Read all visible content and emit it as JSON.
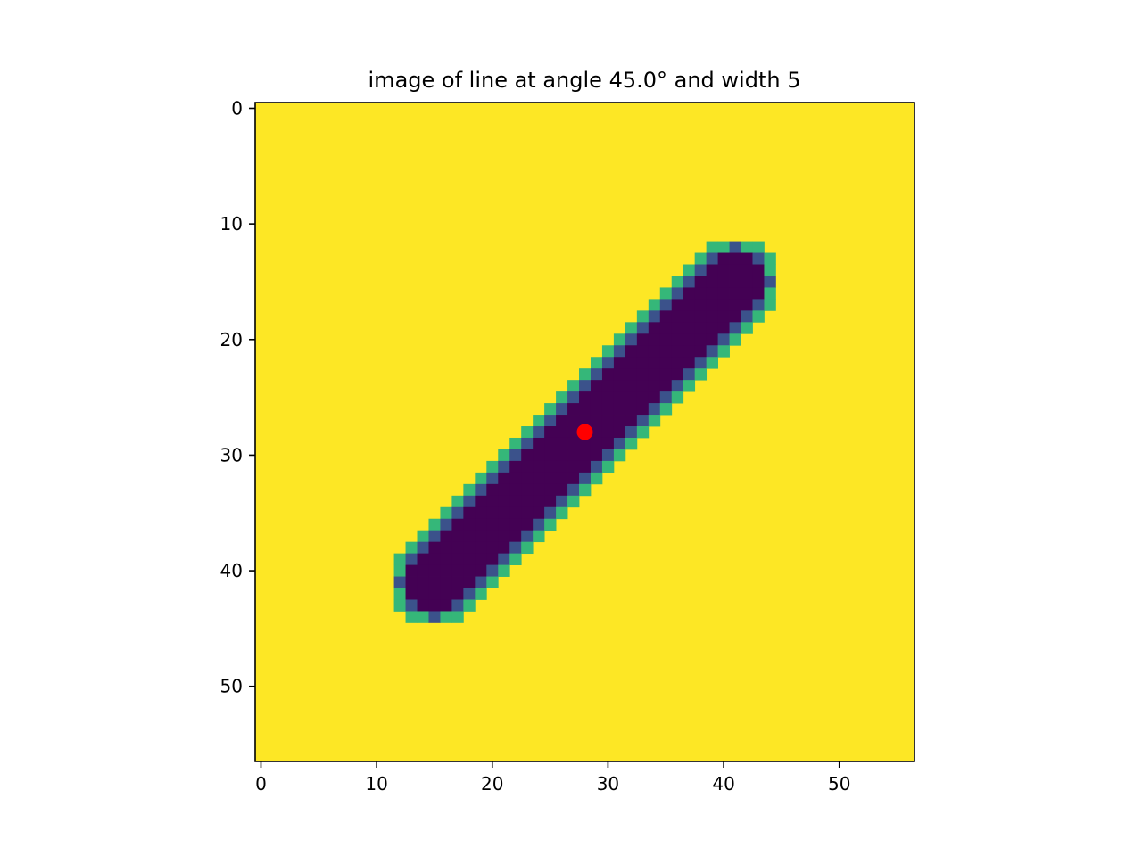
{
  "chart_data": {
    "type": "heatmap",
    "title": "image of line at angle 45.0° and width 5",
    "xlabel": "",
    "ylabel": "",
    "image_size": [
      57,
      57
    ],
    "xlim": [
      -0.5,
      56.5
    ],
    "ylim": [
      56.5,
      -0.5
    ],
    "x_ticks": [
      0,
      10,
      20,
      30,
      40,
      50
    ],
    "y_ticks": [
      0,
      10,
      20,
      30,
      40,
      50
    ],
    "x_tick_labels": [
      "0",
      "10",
      "20",
      "30",
      "40",
      "50"
    ],
    "y_tick_labels": [
      "0",
      "10",
      "20",
      "30",
      "40",
      "50"
    ],
    "colormap": "viridis",
    "colors": {
      "background": "#fde725",
      "core": "#440154",
      "edge_inner": "#3b528b",
      "edge_outer": "#35b779",
      "marker": "#ff0000"
    },
    "line": {
      "angle_deg": 45.0,
      "width": 5,
      "center": [
        28,
        28
      ],
      "endpoints": [
        [
          15,
          41
        ],
        [
          41,
          15
        ]
      ]
    },
    "marker": {
      "x": 28,
      "y": 28
    }
  }
}
